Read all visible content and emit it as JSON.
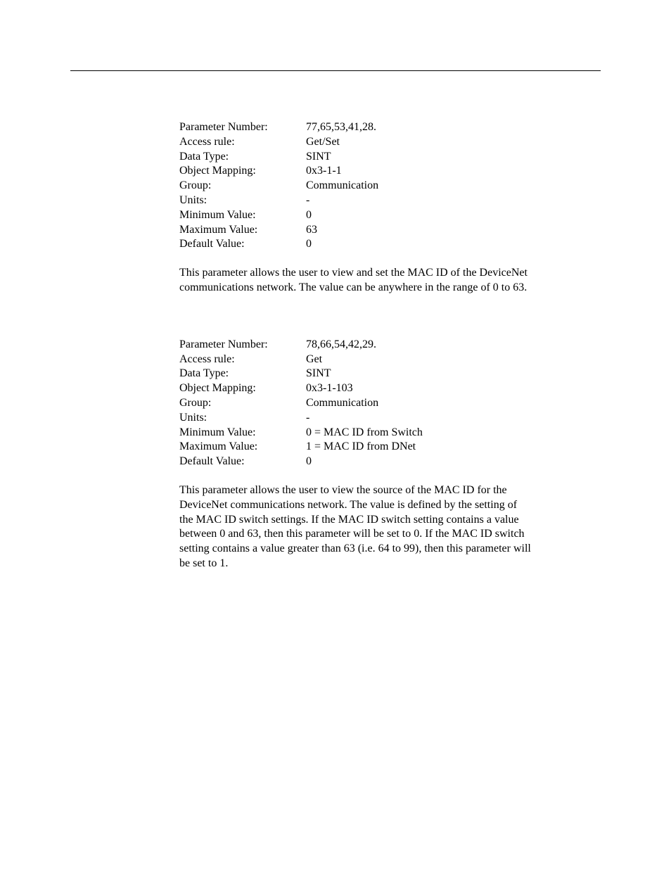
{
  "section1": {
    "params": {
      "parameter_number_label": "Parameter Number:",
      "parameter_number_value": "77,65,53,41,28.",
      "access_rule_label": "Access rule:",
      "access_rule_value": "Get/Set",
      "data_type_label": "Data Type:",
      "data_type_value": "SINT",
      "object_mapping_label": "Object Mapping:",
      "object_mapping_value": "0x3-1-1",
      "group_label": "Group:",
      "group_value": "Communication",
      "units_label": "Units:",
      "units_value": "-",
      "minimum_value_label": "Minimum Value:",
      "minimum_value_value": "0",
      "maximum_value_label": "Maximum Value:",
      "maximum_value_value": "63",
      "default_value_label": "Default Value:",
      "default_value_value": "0"
    },
    "description": "This parameter allows the user to view and set the MAC ID of the DeviceNet communications network.  The value can be anywhere in the range of 0 to 63."
  },
  "section2": {
    "params": {
      "parameter_number_label": "Parameter Number:",
      "parameter_number_value": "78,66,54,42,29.",
      "access_rule_label": "Access rule:",
      "access_rule_value": "Get",
      "data_type_label": "Data Type:",
      "data_type_value": "SINT",
      "object_mapping_label": "Object Mapping:",
      "object_mapping_value": "0x3-1-103",
      "group_label": "Group:",
      "group_value": "Communication",
      "units_label": "Units:",
      "units_value": "-",
      "minimum_value_label": "Minimum Value:",
      "minimum_value_value": "0 = MAC ID from Switch",
      "maximum_value_label": "Maximum Value:",
      "maximum_value_value": "1 = MAC ID from DNet",
      "default_value_label": "Default Value:",
      "default_value_value": "0"
    },
    "description": "This parameter allows the user to view the source of the MAC ID for the DeviceNet communications network.  The value is defined by the setting of the MAC ID switch settings.  If the MAC ID switch setting contains a value between 0 and 63, then this parameter will be set to 0.  If the MAC ID switch setting contains a value greater than 63 (i.e. 64 to 99), then this parameter will be set to 1."
  }
}
